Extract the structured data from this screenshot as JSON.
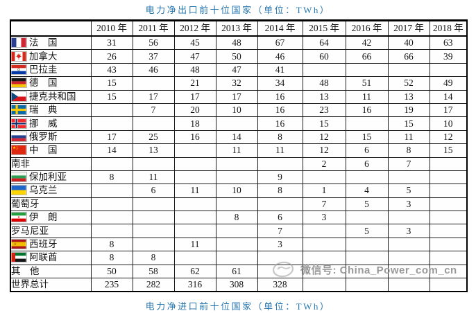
{
  "titles": {
    "top": "电力净出口前十位国家（单位：TWh）",
    "bottom": "电力净进口前十位国家（单位：TWh）"
  },
  "chart_data": {
    "type": "table",
    "title": "电力净出口前十位国家",
    "unit": "TWh",
    "columns": [
      "2010 年",
      "2011 年",
      "2012 年",
      "2013 年",
      "2014 年",
      "2015 年",
      "2016 年",
      "2017 年",
      "2018 年"
    ],
    "rows": [
      {
        "name": "法　国",
        "flag": "france",
        "values": [
          "31",
          "56",
          "45",
          "48",
          "67",
          "64",
          "42",
          "40",
          "63"
        ]
      },
      {
        "name": "加拿大",
        "flag": "canada",
        "values": [
          "26",
          "37",
          "47",
          "50",
          "46",
          "60",
          "66",
          "66",
          "39"
        ]
      },
      {
        "name": "巴拉圭",
        "flag": "paraguay",
        "values": [
          "43",
          "46",
          "48",
          "47",
          "41",
          "",
          "",
          "",
          ""
        ]
      },
      {
        "name": "德　国",
        "flag": "germany",
        "values": [
          "15",
          "",
          "21",
          "32",
          "34",
          "48",
          "51",
          "52",
          "49"
        ]
      },
      {
        "name": "捷克共和国",
        "flag": "czech",
        "values": [
          "15",
          "17",
          "17",
          "17",
          "16",
          "13",
          "11",
          "13",
          "14"
        ]
      },
      {
        "name": "瑞　典",
        "flag": "sweden",
        "values": [
          "",
          "7",
          "20",
          "10",
          "16",
          "23",
          "16",
          "19",
          "17"
        ]
      },
      {
        "name": "挪　威",
        "flag": "norway",
        "values": [
          "",
          "",
          "18",
          "",
          "16",
          "15",
          "",
          "15",
          "10"
        ]
      },
      {
        "name": "俄罗斯",
        "flag": "russia",
        "values": [
          "17",
          "25",
          "16",
          "14",
          "8",
          "12",
          "15",
          "11",
          "12"
        ]
      },
      {
        "name": "中　国",
        "flag": "china",
        "values": [
          "14",
          "13",
          "",
          "11",
          "11",
          "12",
          "6",
          "8",
          "15"
        ]
      },
      {
        "name": "南非",
        "flag": null,
        "values": [
          "",
          "",
          "",
          "",
          "",
          "2",
          "6",
          "7",
          ""
        ]
      },
      {
        "name": "保加利亚",
        "flag": "bulgaria",
        "values": [
          "8",
          "11",
          "",
          "",
          "9",
          "",
          "",
          "",
          ""
        ]
      },
      {
        "name": "乌克兰",
        "flag": "ukraine",
        "values": [
          "",
          "6",
          "11",
          "10",
          "8",
          "1",
          "4",
          "5",
          ""
        ]
      },
      {
        "name": "葡萄牙",
        "flag": null,
        "values": [
          "",
          "",
          "",
          "",
          "",
          "7",
          "5",
          "3",
          ""
        ]
      },
      {
        "name": "伊　朗",
        "flag": "iran",
        "values": [
          "",
          "",
          "",
          "8",
          "6",
          "3",
          "",
          "",
          ""
        ]
      },
      {
        "name": "罗马尼亚",
        "flag": null,
        "values": [
          "",
          "",
          "",
          "",
          "7",
          "",
          "5",
          "3",
          ""
        ]
      },
      {
        "name": "西班牙",
        "flag": "spain",
        "values": [
          "8",
          "",
          "11",
          "",
          "3",
          "",
          "",
          "",
          ""
        ]
      },
      {
        "name": "阿联酋",
        "flag": "uae",
        "values": [
          "8",
          "8",
          "",
          "",
          "",
          "",
          "",
          "",
          ""
        ]
      },
      {
        "name": "其　他",
        "flag": null,
        "values": [
          "50",
          "58",
          "62",
          "61",
          "",
          "",
          "",
          "",
          ""
        ]
      },
      {
        "name": "世界总计",
        "flag": null,
        "values": [
          "235",
          "282",
          "316",
          "308",
          "328",
          "",
          "",
          "",
          ""
        ]
      }
    ]
  },
  "watermark": {
    "logo": "wechat-stamp-logo",
    "text": "微信号: China_Power_com_cn"
  },
  "colors": {
    "title_blue": "#2878b0",
    "watermark_gray": "#8f8f8f",
    "border_black": "#000000"
  }
}
